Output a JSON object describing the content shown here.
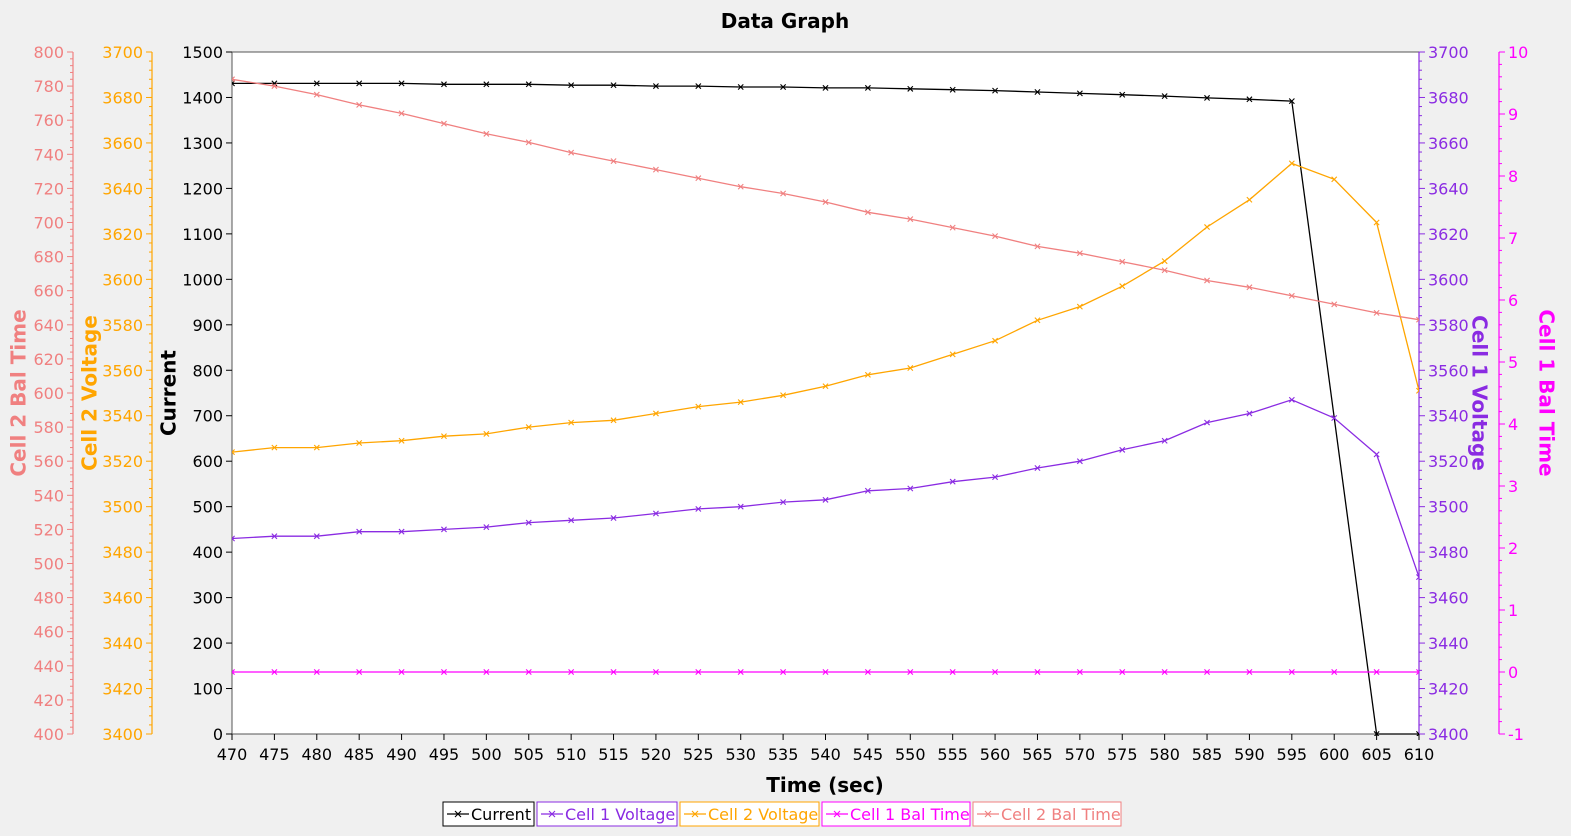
{
  "chart_data": {
    "type": "line",
    "title": "Data Graph",
    "xlabel": "Time (sec)",
    "xlim": [
      470,
      610
    ],
    "x_ticks": [
      470,
      475,
      480,
      485,
      490,
      495,
      500,
      505,
      510,
      515,
      520,
      525,
      530,
      535,
      540,
      545,
      550,
      555,
      560,
      565,
      570,
      575,
      580,
      585,
      590,
      595,
      600,
      605,
      610
    ],
    "grid": false,
    "legend_position": "bottom",
    "axes": [
      {
        "id": "current",
        "label": "Current",
        "side": "left",
        "color": "#000000",
        "lim": [
          0,
          1500
        ],
        "step": 100,
        "minor": 0
      },
      {
        "id": "c2v",
        "label": "Cell 2 Voltage",
        "side": "left",
        "color": "#ffa500",
        "lim": [
          3400,
          3700
        ],
        "step": 20,
        "minor": 4
      },
      {
        "id": "c2b",
        "label": "Cell 2 Bal Time",
        "side": "left",
        "color": "#f08080",
        "lim": [
          400,
          800
        ],
        "step": 20,
        "minor": 4
      },
      {
        "id": "c1v",
        "label": "Cell 1 Voltage",
        "side": "right",
        "color": "#8a2be2",
        "lim": [
          3400,
          3700
        ],
        "step": 20,
        "minor": 4
      },
      {
        "id": "c1b",
        "label": "Cell 1 Bal Time",
        "side": "right",
        "color": "#ff00ff",
        "lim": [
          -1,
          10
        ],
        "step": 1,
        "minor": 4
      }
    ],
    "series": [
      {
        "name": "Current",
        "axis": "current",
        "color": "#000000",
        "x": [
          470,
          475,
          480,
          485,
          490,
          495,
          500,
          505,
          510,
          515,
          520,
          525,
          530,
          535,
          540,
          545,
          550,
          555,
          560,
          565,
          570,
          575,
          580,
          585,
          590,
          595,
          605,
          610
        ],
        "values": [
          1431,
          1431,
          1431,
          1431,
          1431,
          1429,
          1429,
          1429,
          1427,
          1427,
          1425,
          1425,
          1423,
          1423,
          1421,
          1421,
          1419,
          1417,
          1415,
          1412,
          1409,
          1406,
          1403,
          1399,
          1396,
          1392,
          0,
          0
        ]
      },
      {
        "name": "Cell 1 Voltage",
        "axis": "c1v",
        "color": "#8a2be2",
        "x": [
          470,
          475,
          480,
          485,
          490,
          495,
          500,
          505,
          510,
          515,
          520,
          525,
          530,
          535,
          540,
          545,
          550,
          555,
          560,
          565,
          570,
          575,
          580,
          585,
          590,
          595,
          600,
          605,
          610
        ],
        "values": [
          3486,
          3487,
          3487,
          3489,
          3489,
          3490,
          3491,
          3493,
          3494,
          3495,
          3497,
          3499,
          3500,
          3502,
          3503,
          3507,
          3508,
          3511,
          3513,
          3517,
          3520,
          3525,
          3529,
          3537,
          3541,
          3547,
          3539,
          3523,
          3469
        ]
      },
      {
        "name": "Cell 2 Voltage",
        "axis": "c2v",
        "color": "#ffa500",
        "x": [
          470,
          475,
          480,
          485,
          490,
          495,
          500,
          505,
          510,
          515,
          520,
          525,
          530,
          535,
          540,
          545,
          550,
          555,
          560,
          565,
          570,
          575,
          580,
          585,
          590,
          595,
          600,
          605,
          610
        ],
        "values": [
          3524,
          3526,
          3526,
          3528,
          3529,
          3531,
          3532,
          3535,
          3537,
          3538,
          3541,
          3544,
          3546,
          3549,
          3553,
          3558,
          3561,
          3567,
          3573,
          3582,
          3588,
          3597,
          3608,
          3623,
          3635,
          3651,
          3644,
          3625,
          3551
        ]
      },
      {
        "name": "Cell 1 Bal Time",
        "axis": "c1b",
        "color": "#ff00ff",
        "x": [
          470,
          475,
          480,
          485,
          490,
          495,
          500,
          505,
          510,
          515,
          520,
          525,
          530,
          535,
          540,
          545,
          550,
          555,
          560,
          565,
          570,
          575,
          580,
          585,
          590,
          595,
          600,
          605,
          610
        ],
        "values": [
          0,
          0,
          0,
          0,
          0,
          0,
          0,
          0,
          0,
          0,
          0,
          0,
          0,
          0,
          0,
          0,
          0,
          0,
          0,
          0,
          0,
          0,
          0,
          0,
          0,
          0,
          0,
          0,
          0
        ]
      },
      {
        "name": "Cell 2 Bal Time",
        "axis": "c2b",
        "color": "#f08080",
        "x": [
          470,
          475,
          480,
          485,
          490,
          495,
          500,
          505,
          510,
          515,
          520,
          525,
          530,
          535,
          540,
          545,
          550,
          555,
          560,
          565,
          570,
          575,
          580,
          585,
          590,
          595,
          600,
          605,
          610
        ],
        "values": [
          784,
          780,
          775,
          769,
          764,
          758,
          752,
          747,
          741,
          736,
          731,
          726,
          721,
          717,
          712,
          706,
          702,
          697,
          692,
          686,
          682,
          677,
          672,
          666,
          662,
          657,
          652,
          647,
          643
        ]
      }
    ]
  }
}
